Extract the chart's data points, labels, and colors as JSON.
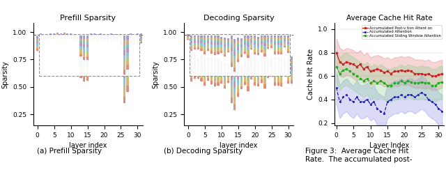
{
  "prefill_title": "Prefill Sparsity",
  "decoding_title": "Decoding Sparsity",
  "cache_title": "Average Cache Hit Rate",
  "prefill_xlabel": "layer index",
  "decoding_xlabel": "layer index",
  "cache_xlabel": "Layer Index",
  "prefill_ylabel": "Sparsity",
  "decoding_ylabel": "Sparsity",
  "cache_ylabel": "Cache Hit Rate",
  "subfig_a": "(a) Prefill Sparsity",
  "subfig_b": "(b) Decoding Sparsity",
  "fig3_caption": "Figure 3:  Average Cache Hit\nRate.  The accumulated post-",
  "legend_red": "Accumulated Post-v tion Attent on",
  "legend_blue": "Accumulated Attention",
  "legend_green": "Accumulated Sliding Window Attention",
  "ylim_sparsity": [
    0.15,
    1.08
  ],
  "ylim_cache": [
    0.18,
    1.05
  ],
  "yticks_sparsity": [
    0.25,
    0.5,
    0.75,
    1.0
  ],
  "yticks_cache": [
    0.2,
    0.4,
    0.6,
    0.8,
    1.0
  ],
  "box_colors": [
    "#e07b6a",
    "#e8a85a",
    "#a8c472",
    "#7bbfe0",
    "#c47fbb",
    "#6abfb8",
    "#d4a070",
    "#9090d0"
  ],
  "background_color": "#ffffff",
  "cache_layers": [
    0,
    1,
    2,
    3,
    4,
    5,
    6,
    7,
    8,
    9,
    10,
    11,
    12,
    13,
    14,
    15,
    16,
    17,
    18,
    19,
    20,
    21,
    22,
    23,
    24,
    25,
    26,
    27,
    28,
    29,
    30,
    31
  ],
  "red_mean": [
    0.8,
    0.72,
    0.7,
    0.72,
    0.71,
    0.7,
    0.68,
    0.7,
    0.66,
    0.68,
    0.64,
    0.65,
    0.66,
    0.65,
    0.63,
    0.64,
    0.62,
    0.64,
    0.64,
    0.65,
    0.64,
    0.65,
    0.64,
    0.62,
    0.62,
    0.62,
    0.61,
    0.62,
    0.6,
    0.6,
    0.61,
    0.62
  ],
  "red_lower": [
    0.68,
    0.6,
    0.59,
    0.61,
    0.6,
    0.58,
    0.56,
    0.58,
    0.54,
    0.56,
    0.52,
    0.53,
    0.53,
    0.53,
    0.51,
    0.52,
    0.5,
    0.52,
    0.51,
    0.53,
    0.52,
    0.53,
    0.51,
    0.5,
    0.5,
    0.5,
    0.49,
    0.5,
    0.48,
    0.48,
    0.49,
    0.5
  ],
  "red_upper": [
    0.92,
    0.84,
    0.82,
    0.84,
    0.83,
    0.82,
    0.8,
    0.82,
    0.78,
    0.8,
    0.76,
    0.77,
    0.78,
    0.77,
    0.75,
    0.76,
    0.74,
    0.76,
    0.76,
    0.77,
    0.76,
    0.77,
    0.76,
    0.74,
    0.74,
    0.74,
    0.73,
    0.74,
    0.72,
    0.72,
    0.73,
    0.74
  ],
  "blue_mean": [
    0.5,
    0.38,
    0.42,
    0.44,
    0.4,
    0.38,
    0.42,
    0.38,
    0.38,
    0.4,
    0.36,
    0.38,
    0.32,
    0.3,
    0.28,
    0.38,
    0.4,
    0.42,
    0.42,
    0.44,
    0.42,
    0.44,
    0.44,
    0.42,
    0.44,
    0.46,
    0.44,
    0.4,
    0.38,
    0.36,
    0.32,
    0.3
  ],
  "blue_lower": [
    0.36,
    0.24,
    0.28,
    0.3,
    0.26,
    0.24,
    0.28,
    0.24,
    0.24,
    0.26,
    0.22,
    0.24,
    0.18,
    0.16,
    0.14,
    0.24,
    0.26,
    0.28,
    0.28,
    0.3,
    0.28,
    0.3,
    0.3,
    0.28,
    0.3,
    0.32,
    0.3,
    0.26,
    0.24,
    0.22,
    0.18,
    0.16
  ],
  "blue_upper": [
    0.64,
    0.52,
    0.56,
    0.58,
    0.54,
    0.52,
    0.56,
    0.52,
    0.52,
    0.54,
    0.5,
    0.52,
    0.46,
    0.44,
    0.42,
    0.52,
    0.54,
    0.56,
    0.56,
    0.58,
    0.56,
    0.58,
    0.58,
    0.56,
    0.58,
    0.6,
    0.58,
    0.54,
    0.52,
    0.5,
    0.46,
    0.44
  ],
  "green_mean": [
    0.68,
    0.62,
    0.65,
    0.66,
    0.64,
    0.62,
    0.6,
    0.58,
    0.56,
    0.58,
    0.54,
    0.56,
    0.54,
    0.56,
    0.54,
    0.52,
    0.52,
    0.54,
    0.54,
    0.56,
    0.54,
    0.56,
    0.55,
    0.54,
    0.54,
    0.55,
    0.54,
    0.54,
    0.52,
    0.52,
    0.54,
    0.55
  ],
  "green_lower": [
    0.54,
    0.48,
    0.51,
    0.52,
    0.5,
    0.48,
    0.46,
    0.44,
    0.42,
    0.44,
    0.4,
    0.42,
    0.4,
    0.42,
    0.4,
    0.38,
    0.38,
    0.4,
    0.4,
    0.42,
    0.4,
    0.42,
    0.41,
    0.4,
    0.4,
    0.41,
    0.4,
    0.4,
    0.38,
    0.38,
    0.4,
    0.41
  ],
  "green_upper": [
    0.82,
    0.76,
    0.79,
    0.8,
    0.78,
    0.76,
    0.74,
    0.72,
    0.7,
    0.72,
    0.68,
    0.7,
    0.68,
    0.7,
    0.68,
    0.66,
    0.66,
    0.68,
    0.68,
    0.7,
    0.68,
    0.7,
    0.69,
    0.68,
    0.68,
    0.69,
    0.68,
    0.68,
    0.66,
    0.66,
    0.68,
    0.69
  ]
}
